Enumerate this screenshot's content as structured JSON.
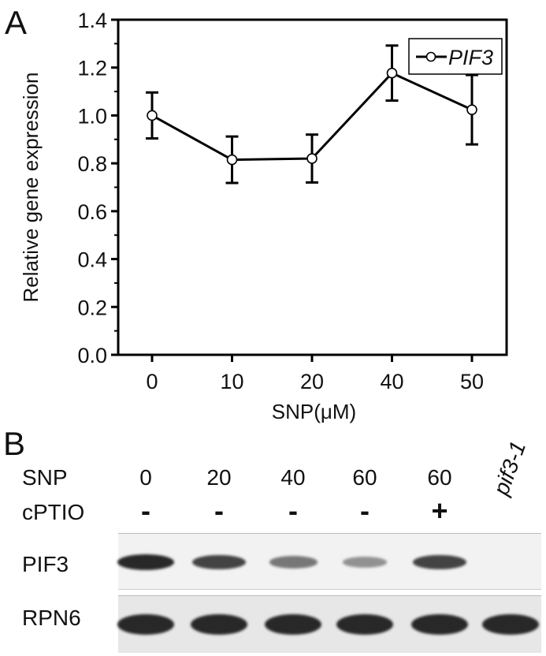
{
  "panel_a_label": "A",
  "panel_b_label": "B",
  "chart_data": {
    "type": "line",
    "title": "",
    "xlabel": "SNP(μM)",
    "ylabel": "Relative gene expression",
    "categories": [
      "0",
      "10",
      "20",
      "40",
      "50"
    ],
    "ylim": [
      0.0,
      1.4
    ],
    "yticks": [
      "0.0",
      "0.2",
      "0.4",
      "0.6",
      "0.8",
      "1.0",
      "1.2",
      "1.4"
    ],
    "series": [
      {
        "name": "PIF3",
        "values": [
          1.0,
          0.815,
          0.82,
          1.177,
          1.024
        ],
        "errors": [
          0.096,
          0.097,
          0.1,
          0.115,
          0.145
        ]
      }
    ],
    "legend": "top-right",
    "grid": false
  },
  "blot": {
    "snp_label": "SNP",
    "cptio_label": "cPTIO",
    "snp_values": [
      "0",
      "20",
      "40",
      "60",
      "60"
    ],
    "cptio_values": [
      "-",
      "-",
      "-",
      "-",
      "+"
    ],
    "mutant_label": "pif3-1",
    "row_labels": [
      "PIF3",
      "RPN6"
    ],
    "pif3_band_intensity": [
      1.0,
      0.85,
      0.5,
      0.3,
      0.85,
      0.0
    ],
    "rpn6_band_intensity": [
      1.0,
      1.0,
      1.0,
      1.0,
      1.0,
      1.0
    ]
  }
}
